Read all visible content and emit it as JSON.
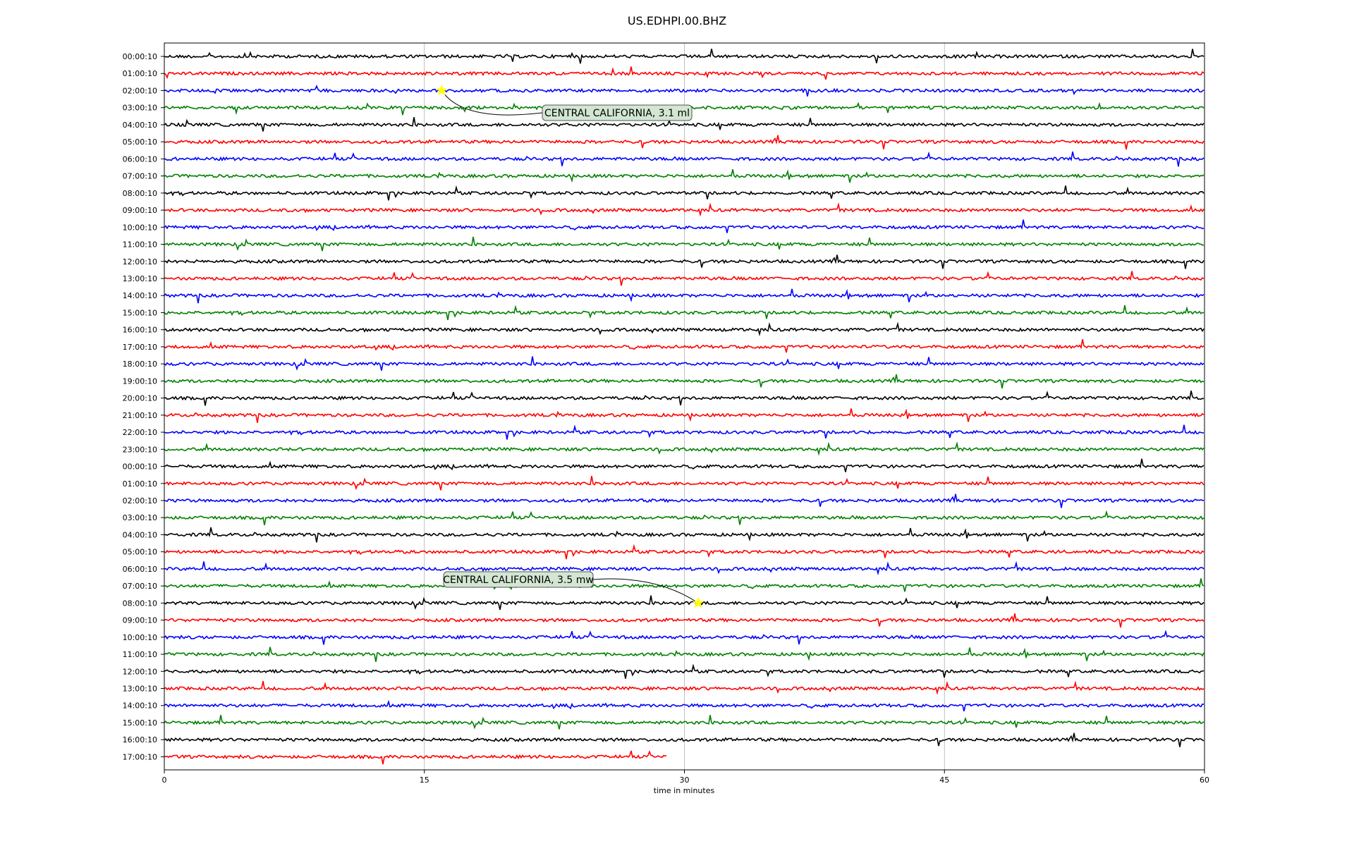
{
  "chart_data": {
    "type": "line",
    "title": "US.EDHPI.00.BHZ",
    "xlabel": "time in minutes",
    "ylabel": "",
    "xlim": [
      0,
      60
    ],
    "x_ticks": [
      "0",
      "15",
      "30",
      "45",
      "60"
    ],
    "x_tick_values": [
      0,
      15,
      30,
      45,
      60
    ],
    "grid": "vertical",
    "trace_colors": [
      "#000000",
      "#ff0000",
      "#0000ff",
      "#008000"
    ],
    "row_labels": [
      "00:00:10",
      "01:00:10",
      "02:00:10",
      "03:00:10",
      "04:00:10",
      "05:00:10",
      "06:00:10",
      "07:00:10",
      "08:00:10",
      "09:00:10",
      "10:00:10",
      "11:00:10",
      "12:00:10",
      "13:00:10",
      "14:00:10",
      "15:00:10",
      "16:00:10",
      "17:00:10",
      "18:00:10",
      "19:00:10",
      "20:00:10",
      "21:00:10",
      "22:00:10",
      "23:00:10",
      "00:00:10",
      "01:00:10",
      "02:00:10",
      "03:00:10",
      "04:00:10",
      "05:00:10",
      "06:00:10",
      "07:00:10",
      "08:00:10",
      "09:00:10",
      "10:00:10",
      "11:00:10",
      "12:00:10",
      "13:00:10",
      "14:00:10",
      "15:00:10",
      "16:00:10",
      "17:00:10"
    ],
    "last_row_end_minute": 29,
    "events": [
      {
        "label": "CENTRAL CALIFORNIA, 3.1 ml",
        "row": 2,
        "minute": 16
      },
      {
        "label": "CENTRAL CALIFORNIA, 3.5 mw",
        "row": 32,
        "minute": 30.8
      }
    ],
    "marker_color": "#ffff00",
    "annotation_box_color": "#d2e6d2"
  }
}
